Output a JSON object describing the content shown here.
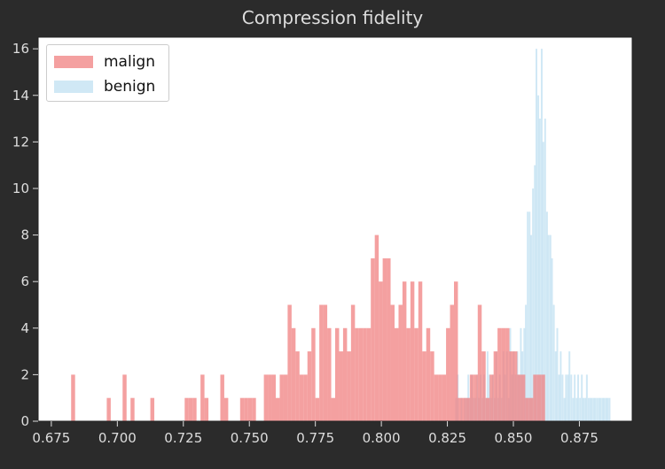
{
  "chart_data": {
    "type": "histogram",
    "title": "Compression fidelity",
    "xlabel": "",
    "ylabel": "",
    "xlim": [
      0.67,
      0.895
    ],
    "ylim": [
      0,
      16.5
    ],
    "xticks": [
      "0.675",
      "0.700",
      "0.725",
      "0.750",
      "0.775",
      "0.800",
      "0.825",
      "0.850",
      "0.875"
    ],
    "yticks": [
      "0",
      "2",
      "4",
      "6",
      "8",
      "10",
      "12",
      "14",
      "16"
    ],
    "grid": false,
    "legend_position": "top-left",
    "series": [
      {
        "name": "malign",
        "color": "#f08080",
        "opacity": 0.75,
        "bin_width": 0.0015,
        "bin_starts": [
          0.6825,
          0.696,
          0.702,
          0.705,
          0.7125,
          0.7255,
          0.727,
          0.7285,
          0.7315,
          0.733,
          0.739,
          0.7405,
          0.7465,
          0.748,
          0.7495,
          0.751,
          0.7555,
          0.757,
          0.7585,
          0.76,
          0.7615,
          0.763,
          0.7645,
          0.766,
          0.7675,
          0.769,
          0.7705,
          0.772,
          0.7735,
          0.775,
          0.7765,
          0.778,
          0.7795,
          0.781,
          0.7825,
          0.784,
          0.7855,
          0.787,
          0.7885,
          0.79,
          0.7915,
          0.793,
          0.7945,
          0.796,
          0.7975,
          0.799,
          0.8005,
          0.802,
          0.8035,
          0.805,
          0.8065,
          0.808,
          0.8095,
          0.811,
          0.8125,
          0.814,
          0.8155,
          0.817,
          0.8185,
          0.82,
          0.8215,
          0.823,
          0.8245,
          0.826,
          0.8275,
          0.829,
          0.8305,
          0.832,
          0.8335,
          0.835,
          0.8365,
          0.838,
          0.8395,
          0.841,
          0.8425,
          0.844,
          0.8455,
          0.847,
          0.8485,
          0.85,
          0.8515,
          0.853,
          0.8545,
          0.856,
          0.8575,
          0.859,
          0.8605
        ],
        "counts": [
          2,
          1,
          2,
          1,
          1,
          1,
          1,
          1,
          2,
          1,
          2,
          1,
          1,
          1,
          1,
          1,
          2,
          2,
          2,
          1,
          2,
          2,
          5,
          4,
          3,
          2,
          2,
          3,
          4,
          1,
          5,
          5,
          4,
          1,
          4,
          3,
          4,
          3,
          5,
          4,
          4,
          4,
          4,
          7,
          8,
          6,
          7,
          7,
          5,
          4,
          5,
          6,
          4,
          6,
          4,
          6,
          3,
          4,
          3,
          2,
          2,
          2,
          4,
          5,
          6,
          1,
          1,
          1,
          2,
          2,
          5,
          3,
          1,
          2,
          3,
          4,
          4,
          4,
          3,
          3,
          2,
          2,
          1,
          1,
          2,
          2,
          2
        ]
      },
      {
        "name": "benign",
        "color": "#b0d8ef",
        "opacity": 0.6,
        "bin_width": 0.00066,
        "bin_starts": [
          0.828,
          0.8286,
          0.83,
          0.8313,
          0.832,
          0.8326,
          0.8333,
          0.8339,
          0.8346,
          0.8353,
          0.836,
          0.8366,
          0.8373,
          0.838,
          0.8386,
          0.8393,
          0.8399,
          0.8406,
          0.8412,
          0.8419,
          0.8426,
          0.8432,
          0.8439,
          0.8445,
          0.8452,
          0.8459,
          0.8465,
          0.8472,
          0.8479,
          0.8485,
          0.8492,
          0.8498,
          0.8505,
          0.8512,
          0.8518,
          0.8525,
          0.8531,
          0.8538,
          0.8544,
          0.8551,
          0.8558,
          0.8564,
          0.8571,
          0.8578,
          0.8584,
          0.8591,
          0.8597,
          0.8604,
          0.861,
          0.8617,
          0.8624,
          0.863,
          0.8637,
          0.8643,
          0.865,
          0.8657,
          0.8663,
          0.867,
          0.8676,
          0.8683,
          0.869,
          0.8696,
          0.8703,
          0.8709,
          0.8716,
          0.8723,
          0.8729,
          0.8736,
          0.8742,
          0.8749,
          0.8756,
          0.8762,
          0.8769,
          0.8775,
          0.8782,
          0.8789,
          0.8795,
          0.8802,
          0.8808,
          0.8815,
          0.8822,
          0.8828,
          0.8835,
          0.8841,
          0.8848,
          0.8854,
          0.8861
        ],
        "counts": [
          1,
          2,
          1,
          1,
          1,
          2,
          1,
          2,
          1,
          1,
          2,
          1,
          2,
          1,
          2,
          1,
          3,
          2,
          1,
          2,
          1,
          3,
          1,
          2,
          1,
          3,
          2,
          3,
          1,
          4,
          2,
          3,
          2,
          3,
          2,
          4,
          3,
          4,
          5,
          9,
          9,
          8,
          10,
          11,
          16,
          14,
          13,
          16,
          12,
          13,
          9,
          8,
          8,
          7,
          5,
          3,
          4,
          2,
          3,
          2,
          1,
          2,
          2,
          3,
          2,
          1,
          2,
          1,
          2,
          1,
          2,
          1,
          1,
          2,
          1,
          1,
          1,
          1,
          1,
          1,
          1,
          1,
          1,
          1,
          1,
          1,
          1
        ]
      }
    ]
  }
}
